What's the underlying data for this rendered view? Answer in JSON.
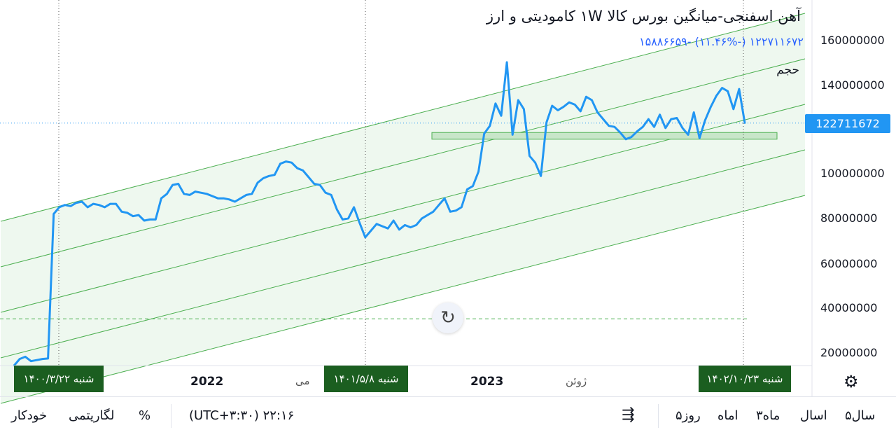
{
  "header": {
    "title": "آهن اسفنجی-میانگین بورس کالا ۱W کامودیتی و ارز",
    "change": "۱۲۲۷۱۱۶۷۲ (-۱۱.۴۶%) -۱۵۸۸۶۶۵۹",
    "volume_label": "حجم"
  },
  "colors": {
    "line": "#2196f3",
    "channel": "#4caf50",
    "channel_fill": "#e8f5e9",
    "badge": "#1b5e20",
    "price_badge": "#2196f3"
  },
  "price_badge": "122711672",
  "y_ticks": [
    "160000000",
    "140000000",
    "100000000",
    "80000000",
    "60000000",
    "40000000",
    "20000000"
  ],
  "x_ticks": {
    "y2022": "2022",
    "may": "می",
    "y2023": "2023",
    "june": "ژوئن"
  },
  "date_badges": {
    "left": "شنبه ۱۴۰۰/۳/۲۲",
    "middle": "شنبه ۱۴۰۱/۵/۸",
    "right": "شنبه ۱۴۰۲/۱۰/۲۳"
  },
  "icons": {
    "settings": "gear-icon",
    "reset": "reset-icon",
    "compare": "calendar-compare-icon"
  },
  "toolbar": {
    "auto": "خودکار",
    "log": "لگاریتمی",
    "percent": "%",
    "time": "(UTC+۳:۳۰) ۲۲:۱۶",
    "range_5d": "۵روز",
    "range_1m": "اماه",
    "range_3m": "۳ماه",
    "range_1y": "اسال",
    "range_5y": "۵سال"
  },
  "chart_data": {
    "type": "line",
    "series": [
      {
        "values": [
          14000000,
          17000000,
          18000000,
          16000000,
          16500000,
          17000000,
          17200000,
          82000000,
          85000000,
          86000000,
          85500000,
          87000000,
          87500000,
          85000000,
          86500000,
          86000000,
          85000000,
          86500000,
          86500000,
          83000000,
          82500000,
          81000000,
          81500000,
          79000000,
          79500000,
          79500000,
          89000000,
          91000000,
          95000000,
          95500000,
          91000000,
          90500000,
          92000000,
          91500000,
          91000000,
          90000000,
          89000000,
          89000000,
          88500000,
          87500000,
          89000000,
          90500000,
          91000000,
          96000000,
          98000000,
          99000000,
          99500000,
          104500000,
          105500000,
          105000000,
          102500000,
          101500000,
          98500000,
          95500000,
          95000000,
          91500000,
          90500000,
          84000000,
          79500000,
          80000000,
          85000000,
          78000000,
          71500000,
          74500000,
          77500000,
          76500000,
          75500000,
          79000000,
          75000000,
          77000000,
          76000000,
          77000000,
          80000000,
          81500000,
          83000000,
          86000000,
          89000000,
          83000000,
          83500000,
          85000000,
          93000000,
          94500000,
          101000000,
          118000000,
          121500000,
          131500000,
          126000000,
          150000000,
          117500000,
          133000000,
          129000000,
          108000000,
          105000000,
          99000000,
          123000000,
          130500000,
          128500000,
          130000000,
          132000000,
          131000000,
          128000000,
          134500000,
          133000000,
          127500000,
          124500000,
          121500000,
          121000000,
          118500000,
          115500000,
          116500000,
          119000000,
          121000000,
          124500000,
          121000000,
          126500000,
          120500000,
          124500000,
          125000000,
          120500000,
          117500000,
          127500000,
          116000000,
          124000000,
          130000000,
          135000000,
          138500000,
          137000000,
          129000000,
          138000000,
          122700000
        ]
      }
    ],
    "x_range_labels": [
      "2022",
      "2023"
    ],
    "ylim": [
      15000000,
      166000000
    ],
    "y_ticks": [
      160000000,
      140000000,
      120000000,
      100000000,
      80000000,
      60000000,
      40000000,
      20000000
    ],
    "last_value": 122711672,
    "change_pct": -11.46,
    "change_abs": -15886659,
    "grid": false,
    "annotations": {
      "channel_lines": 5,
      "support_zone": [
        115500000,
        118500000
      ],
      "dashed_level": 35000000
    }
  }
}
